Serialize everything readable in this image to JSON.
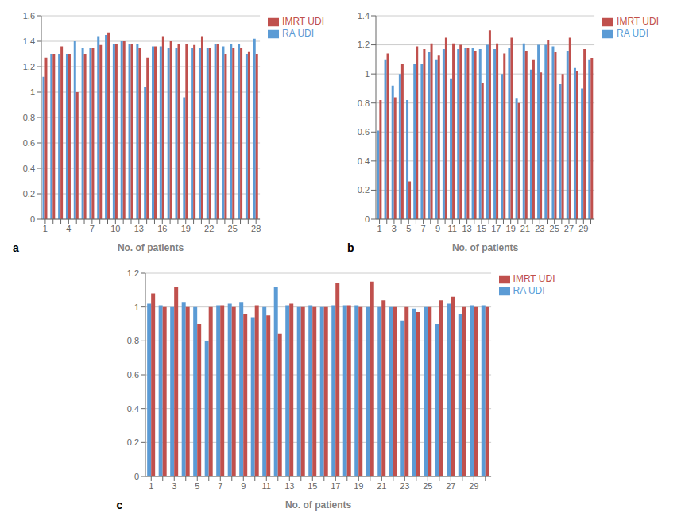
{
  "chart_data": [
    {
      "type": "bar",
      "annotations": [
        "a"
      ],
      "xlabel": "No. of patients",
      "categories": [
        1,
        null,
        null,
        4,
        null,
        null,
        7,
        null,
        null,
        10,
        null,
        null,
        13,
        null,
        null,
        16,
        null,
        null,
        19,
        null,
        null,
        22,
        null,
        null,
        25,
        null,
        null,
        28
      ],
      "series": [
        {
          "name": "RA UDI",
          "color": "#5B9BD5",
          "values": [
            1.12,
            1.3,
            1.3,
            1.3,
            1.4,
            1.35,
            1.35,
            1.44,
            1.45,
            1.38,
            1.4,
            1.38,
            1.38,
            1.04,
            1.36,
            1.36,
            1.35,
            1.35,
            0.96,
            1.35,
            1.35,
            1.35,
            1.38,
            1.36,
            1.38,
            1.38,
            1.3,
            1.42
          ]
        },
        {
          "name": "IMRT UDI",
          "color": "#C0504D",
          "values": [
            1.27,
            1.3,
            1.36,
            1.3,
            1.0,
            1.3,
            1.35,
            1.37,
            1.47,
            1.38,
            1.4,
            1.38,
            1.35,
            1.27,
            1.36,
            1.44,
            1.4,
            1.38,
            1.38,
            1.37,
            1.44,
            1.35,
            1.38,
            1.3,
            1.35,
            1.35,
            1.32,
            1.3
          ]
        }
      ],
      "ylim": [
        0,
        1.6
      ],
      "yticks": [
        0,
        0.2,
        0.4,
        0.6,
        0.8,
        1,
        1.2,
        1.4,
        1.6
      ],
      "grid": true,
      "legend": "right"
    },
    {
      "type": "bar",
      "annotations": [
        "b"
      ],
      "xlabel": "No. of patients",
      "categories": [
        1,
        null,
        3,
        null,
        5,
        null,
        7,
        null,
        9,
        null,
        11,
        null,
        13,
        null,
        15,
        null,
        17,
        null,
        19,
        null,
        21,
        null,
        23,
        null,
        25,
        null,
        27,
        null,
        29,
        null
      ],
      "series": [
        {
          "name": "RA UDI",
          "color": "#5B9BD5",
          "values": [
            0.61,
            1.1,
            0.92,
            1.0,
            0.82,
            1.07,
            1.07,
            1.15,
            1.1,
            1.17,
            0.97,
            1.17,
            1.18,
            1.18,
            1.17,
            1.2,
            1.17,
            1.0,
            1.18,
            0.83,
            1.21,
            1.03,
            1.2,
            1.2,
            1.19,
            0.93,
            1.16,
            1.04,
            0.9,
            1.1
          ]
        },
        {
          "name": "IMRT UDI",
          "color": "#C0504D",
          "values": [
            0.82,
            1.14,
            0.84,
            1.07,
            0.26,
            1.19,
            1.17,
            1.21,
            1.13,
            1.25,
            1.21,
            1.2,
            1.18,
            1.16,
            0.94,
            1.3,
            1.21,
            1.14,
            1.25,
            0.8,
            1.16,
            1.1,
            1.01,
            1.23,
            1.15,
            1.0,
            1.25,
            1.02,
            1.17,
            1.11
          ]
        }
      ],
      "ylim": [
        0,
        1.4
      ],
      "yticks": [
        0,
        0.2,
        0.4,
        0.6,
        0.8,
        1,
        1.2,
        1.4
      ],
      "grid": true,
      "legend": "right"
    },
    {
      "type": "bar",
      "annotations": [
        "c"
      ],
      "xlabel": "No. of patients",
      "categories": [
        1,
        null,
        3,
        null,
        5,
        null,
        7,
        null,
        9,
        null,
        11,
        null,
        13,
        null,
        15,
        null,
        17,
        null,
        19,
        null,
        21,
        null,
        23,
        null,
        25,
        null,
        27,
        null,
        29,
        null
      ],
      "series": [
        {
          "name": "RA UDI",
          "color": "#5B9BD5",
          "values": [
            1.02,
            1.01,
            1.0,
            1.03,
            1.0,
            0.8,
            1.01,
            1.02,
            1.03,
            0.94,
            1.0,
            1.12,
            1.01,
            1.0,
            1.01,
            1.0,
            1.01,
            1.01,
            1.01,
            1.0,
            1.0,
            1.0,
            0.92,
            0.99,
            1.0,
            0.9,
            1.02,
            0.96,
            1.01,
            1.01
          ]
        },
        {
          "name": "IMRT UDI",
          "color": "#C0504D",
          "values": [
            1.08,
            1.0,
            1.12,
            1.0,
            0.9,
            1.0,
            1.01,
            1.0,
            0.96,
            1.01,
            0.95,
            0.84,
            1.02,
            1.0,
            1.0,
            1.0,
            1.14,
            1.01,
            1.0,
            1.15,
            1.04,
            1.0,
            1.0,
            0.97,
            1.0,
            1.04,
            1.06,
            1.0,
            1.0,
            1.0
          ]
        }
      ],
      "ylim": [
        0,
        1.2
      ],
      "yticks": [
        0,
        0.2,
        0.4,
        0.6,
        0.8,
        1,
        1.2
      ],
      "grid": true,
      "legend": "right"
    }
  ]
}
